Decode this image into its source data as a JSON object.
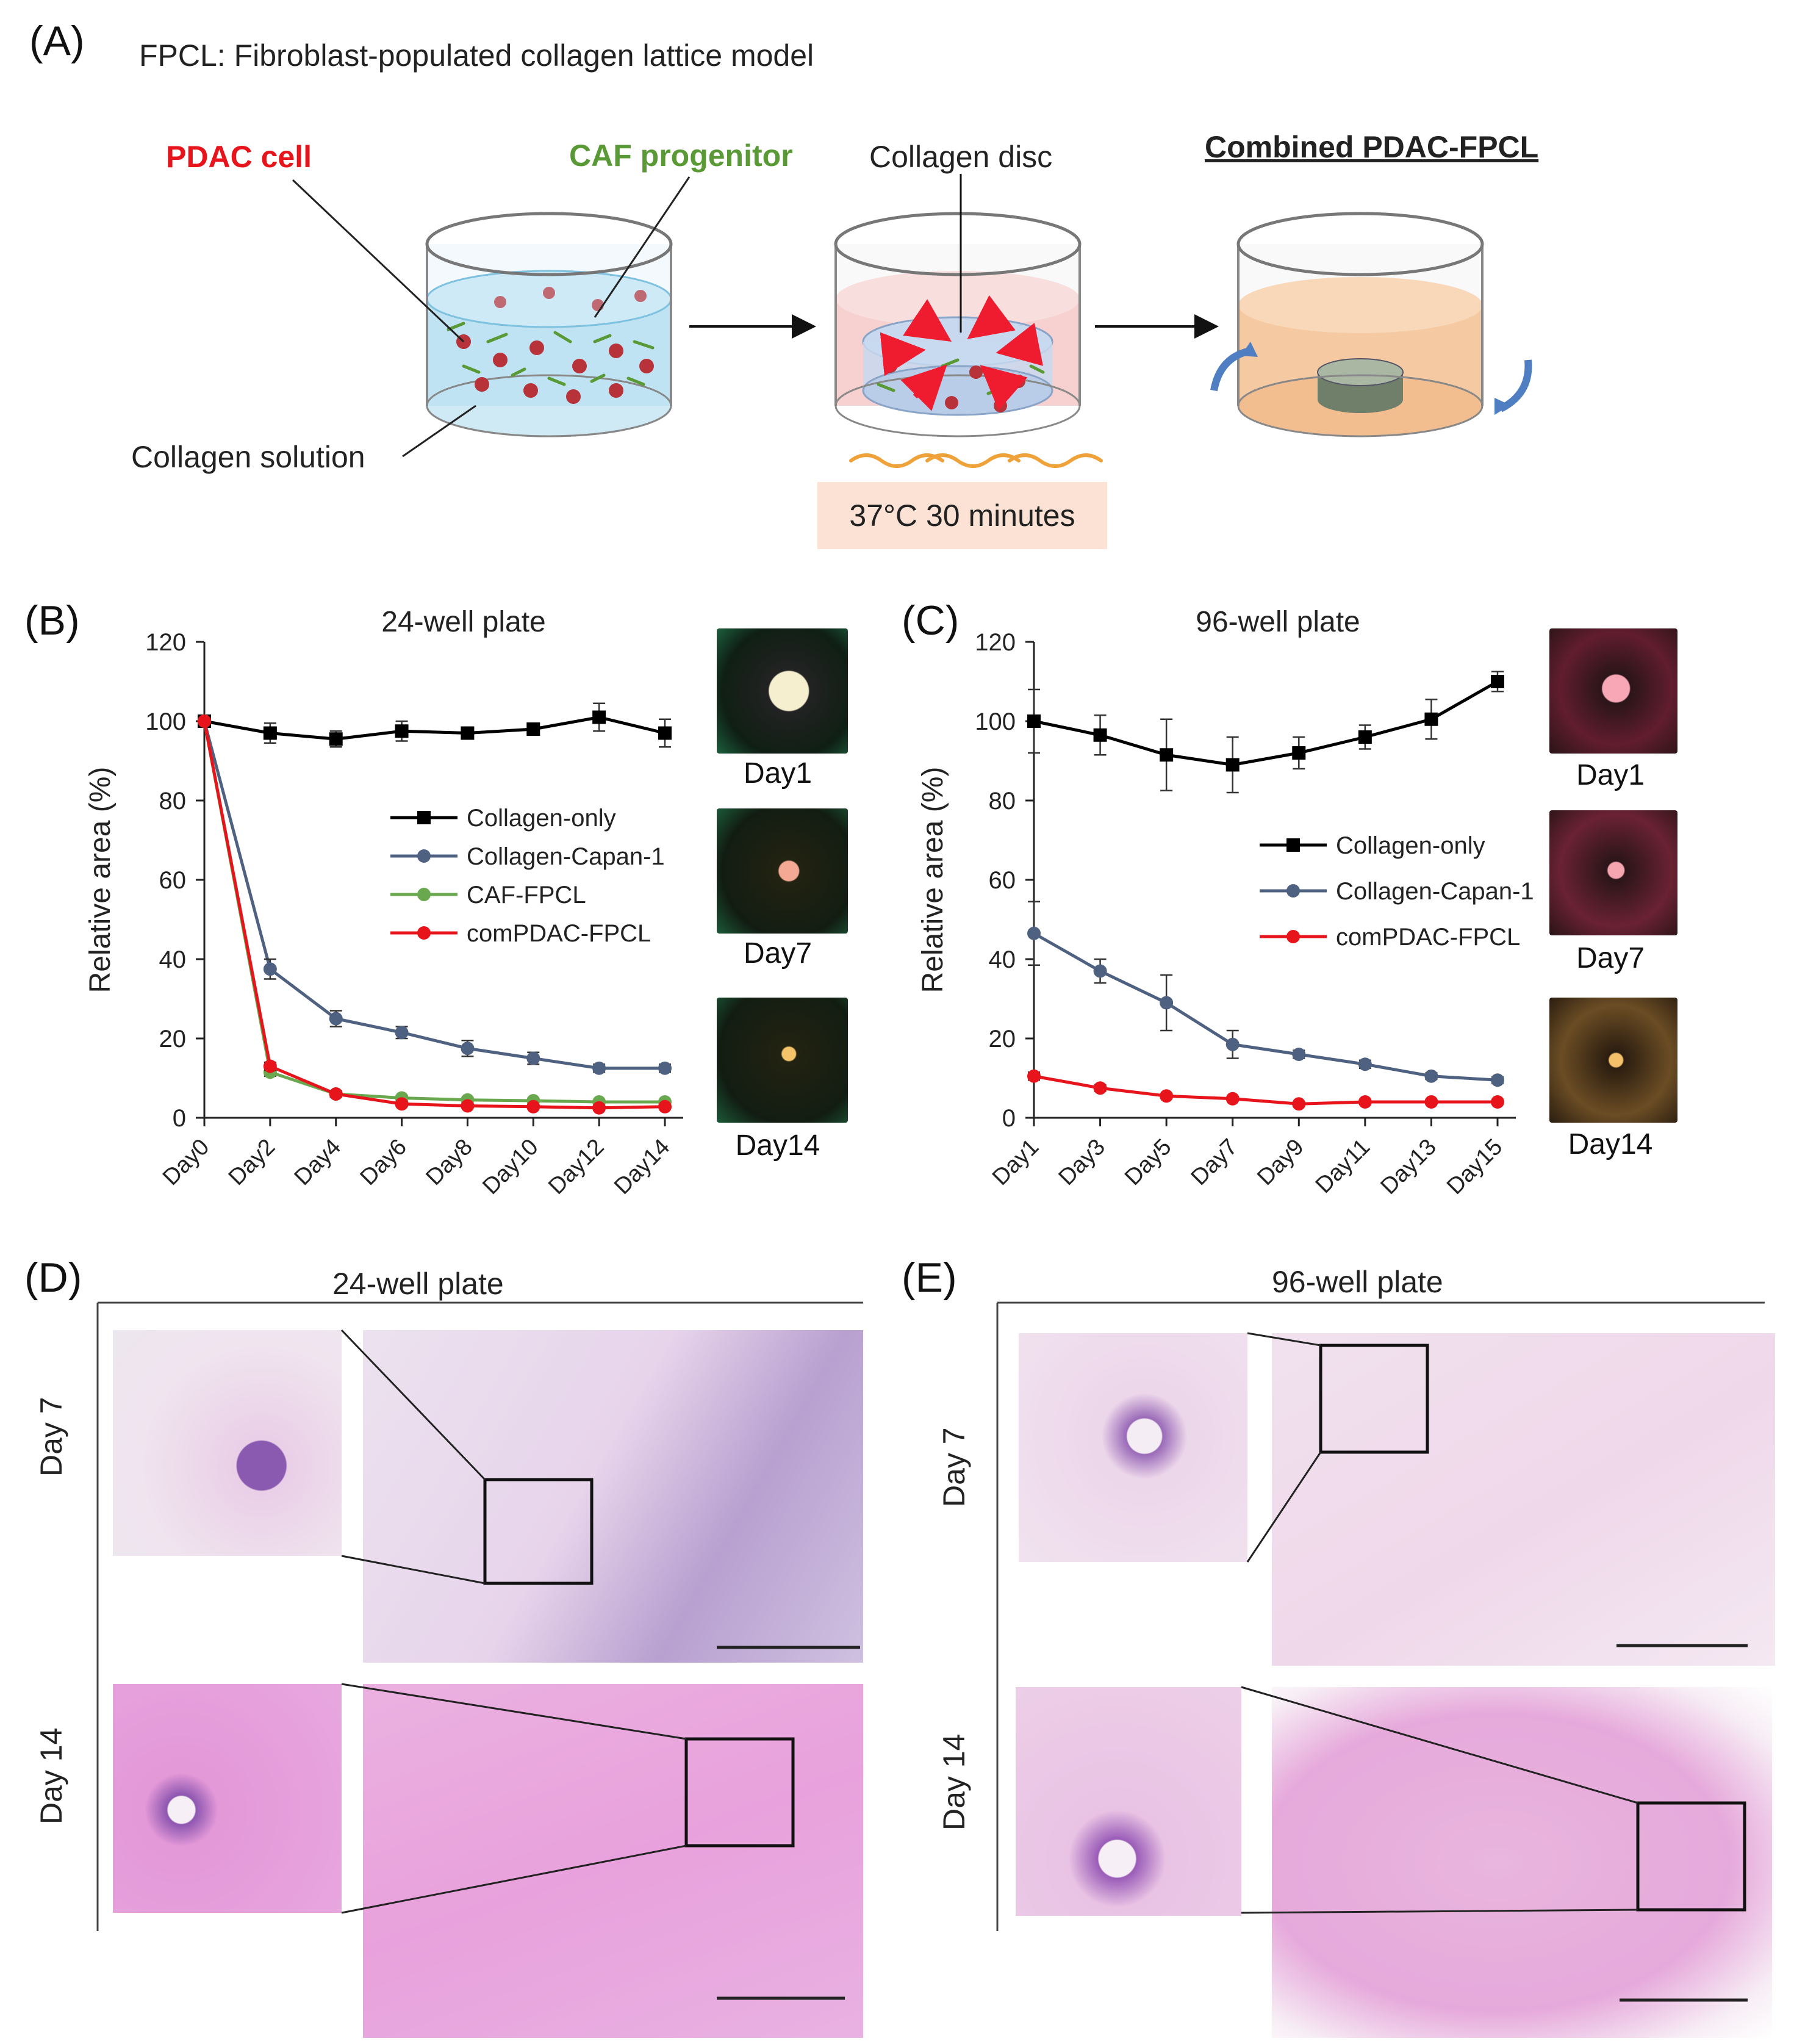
{
  "panel_A": {
    "letter": "(A)",
    "title": "FPCL: Fibroblast-populated collagen lattice model",
    "label_pdac": "PDAC cell",
    "label_caf": "CAF progenitor",
    "label_collagen_disc": "Collagen disc",
    "label_combined": "Combined PDAC-FPCL",
    "label_solution": "Collagen solution",
    "label_incubation": "37°C 30 minutes",
    "colors": {
      "pdac": "#e8141b",
      "caf": "#5a9a36",
      "liquid": "#bfe3f3",
      "medium": "#f5c9a1"
    }
  },
  "chart_data": [
    {
      "id": "B",
      "letter": "(B)",
      "type": "line",
      "title": "24-well plate",
      "xlabel": "",
      "ylabel": "Relative area (%)",
      "ylim": [
        0,
        120
      ],
      "yticks": [
        0,
        20,
        40,
        60,
        80,
        100,
        120
      ],
      "categories": [
        "Day0",
        "Day2",
        "Day4",
        "Day6",
        "Day8",
        "Day10",
        "Day12",
        "Day14"
      ],
      "legend_position": "center-right",
      "series": [
        {
          "name": "Collagen-only",
          "color": "#000000",
          "marker": "square",
          "values": [
            100,
            97,
            95.5,
            97.5,
            97,
            98,
            101,
            97
          ],
          "errors": [
            0,
            2.5,
            2,
            2.5,
            1.5,
            1.5,
            3.5,
            3.5
          ]
        },
        {
          "name": "Collagen-Capan-1",
          "color": "#4f6180",
          "marker": "circle",
          "values": [
            100,
            37.5,
            25,
            21.5,
            17.5,
            15,
            12.5,
            12.5
          ],
          "errors": [
            0,
            2.5,
            2,
            1.5,
            2,
            1.5,
            1,
            1
          ]
        },
        {
          "name": "CAF-FPCL",
          "color": "#6aa84f",
          "marker": "circle",
          "values": [
            100,
            11.5,
            6,
            5,
            4.5,
            4.3,
            4,
            4
          ],
          "errors": [
            0,
            1,
            0.8,
            0.6,
            0.6,
            0.5,
            0.5,
            0.5
          ]
        },
        {
          "name": "comPDAC-FPCL",
          "color": "#e8141b",
          "marker": "circle",
          "values": [
            100,
            13,
            6,
            3.5,
            3,
            2.8,
            2.5,
            2.8
          ],
          "errors": [
            0,
            1,
            0.8,
            0.6,
            0.5,
            0.5,
            0.5,
            0.5
          ]
        }
      ],
      "thumbnails": [
        "Day1",
        "Day7",
        "Day14"
      ]
    },
    {
      "id": "C",
      "letter": "(C)",
      "type": "line",
      "title": "96-well plate",
      "xlabel": "",
      "ylabel": "Relative area (%)",
      "ylim": [
        0,
        120
      ],
      "yticks": [
        0,
        20,
        40,
        60,
        80,
        100,
        120
      ],
      "categories": [
        "Day1",
        "Day3",
        "Day5",
        "Day7",
        "Day9",
        "Day11",
        "Day13",
        "Day15"
      ],
      "legend_position": "center-right",
      "series": [
        {
          "name": "Collagen-only",
          "color": "#000000",
          "marker": "square",
          "values": [
            100,
            96.5,
            91.5,
            89,
            92,
            96,
            100.5,
            110
          ],
          "errors": [
            8,
            5,
            9,
            7,
            4,
            3,
            5,
            2.5
          ]
        },
        {
          "name": "Collagen-Capan-1",
          "color": "#4f6180",
          "marker": "circle",
          "values": [
            46.5,
            37,
            29,
            18.5,
            16,
            13.5,
            10.5,
            9.5
          ],
          "errors": [
            8,
            3,
            7,
            3.5,
            1,
            1,
            0.8,
            0.8
          ]
        },
        {
          "name": "comPDAC-FPCL",
          "color": "#e8141b",
          "marker": "circle",
          "values": [
            10.5,
            7.5,
            5.5,
            4.8,
            3.5,
            4,
            4,
            4
          ],
          "errors": [
            1,
            0.8,
            0.6,
            0.5,
            0.5,
            0.5,
            0.5,
            0.5
          ]
        }
      ],
      "thumbnails": [
        "Day1",
        "Day7",
        "Day14"
      ]
    }
  ],
  "panel_D": {
    "letter": "(D)",
    "title": "24-well plate",
    "row_labels": [
      "Day 7",
      "Day 14"
    ]
  },
  "panel_E": {
    "letter": "(E)",
    "title": "96-well plate",
    "row_labels": [
      "Day 7",
      "Day 14"
    ]
  }
}
